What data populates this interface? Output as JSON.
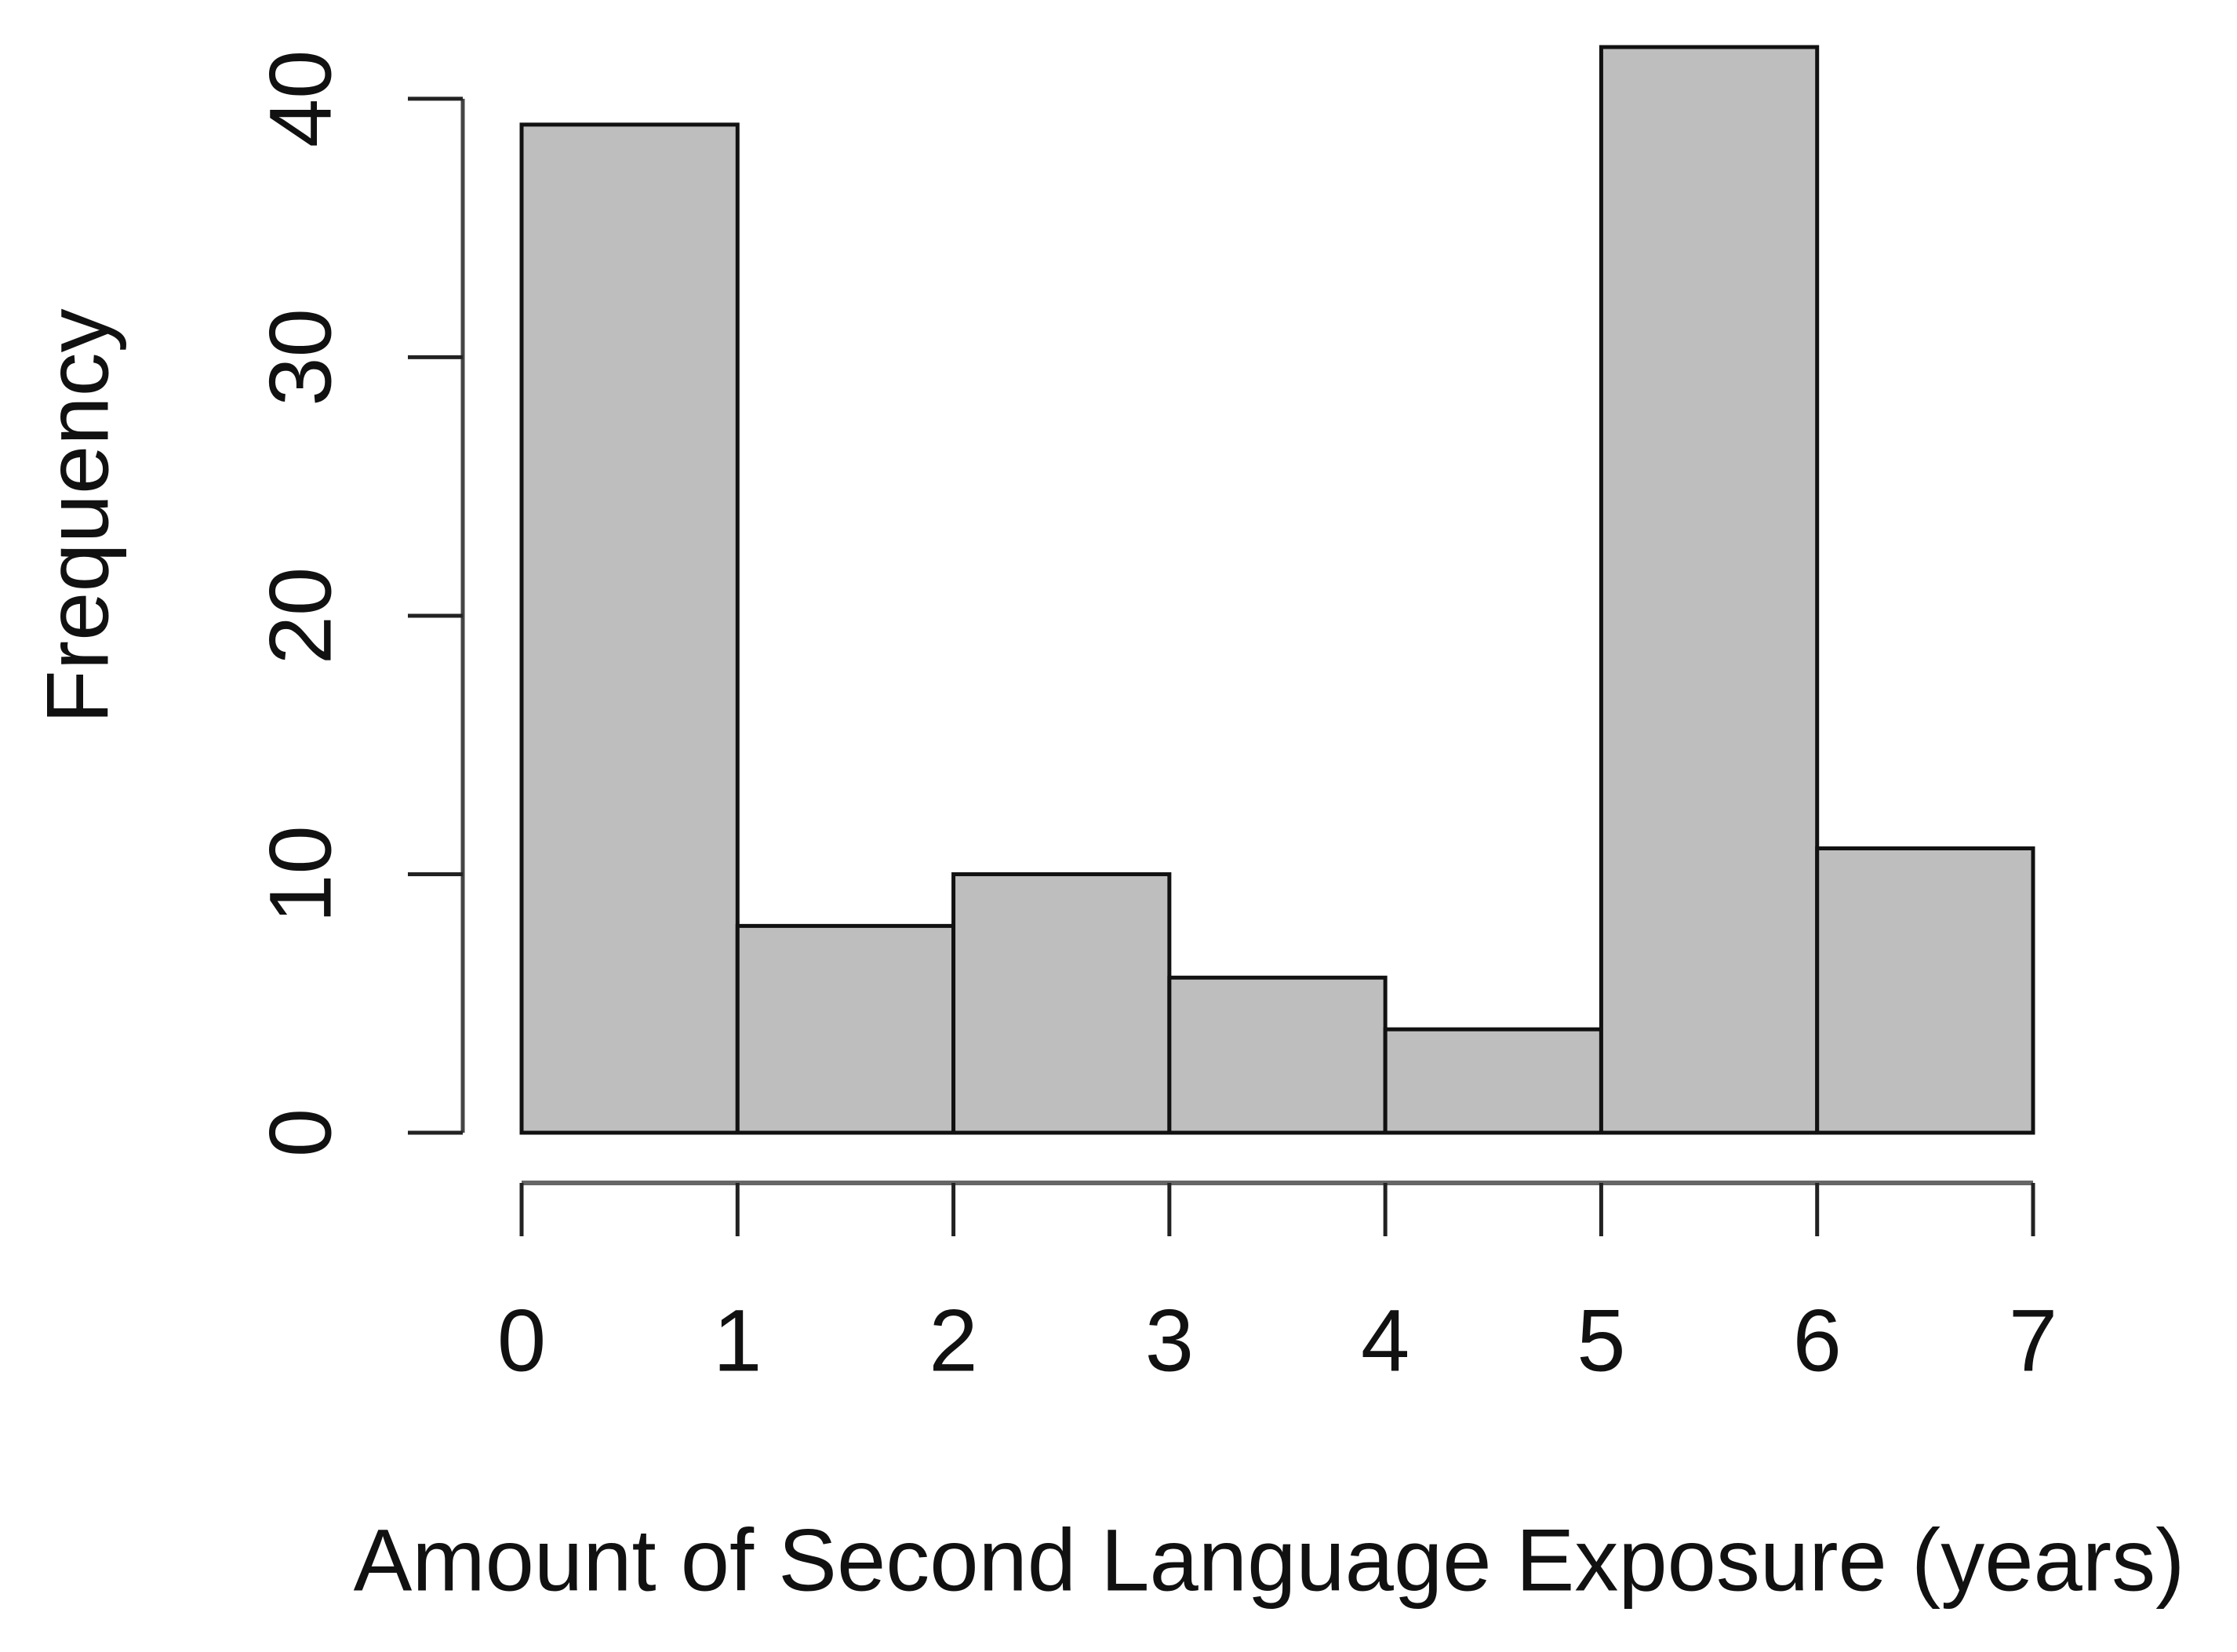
{
  "chart_data": {
    "type": "histogram",
    "x_label": "Amount of Second Language Exposure (years)",
    "y_label": "Frequency",
    "bins": [
      0,
      1,
      2,
      3,
      4,
      5,
      6,
      7
    ],
    "values": [
      39,
      8,
      10,
      6,
      4,
      42,
      11
    ],
    "color": "#bebebe",
    "xlim": [
      0,
      7
    ],
    "xticks": [
      0,
      1,
      2,
      3,
      4,
      5,
      6,
      7
    ],
    "ylim": [
      0,
      42
    ],
    "yticks": [
      0,
      10,
      20,
      30,
      40
    ],
    "grid": false
  }
}
